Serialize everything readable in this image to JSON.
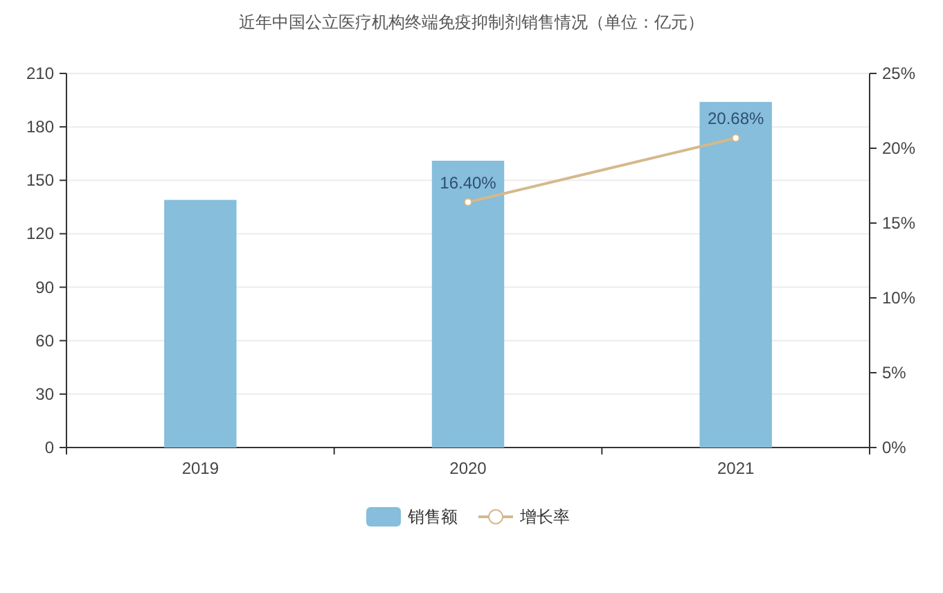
{
  "chart_data": {
    "type": "bar",
    "title": "近年中国公立医疗机构终端免疫抑制剂销售情况（单位：亿元）",
    "categories": [
      "2019",
      "2020",
      "2021"
    ],
    "series": [
      {
        "name": "销售额",
        "color": "#86bedb",
        "values": [
          139,
          161,
          194
        ]
      },
      {
        "name": "增长率",
        "type": "line",
        "axis": "y2",
        "color": "#d4b98c",
        "marker": "circle",
        "values": [
          null,
          16.4,
          20.68
        ],
        "value_labels": [
          null,
          "16.40%",
          "20.68%"
        ]
      }
    ],
    "ylim": [
      0,
      210
    ],
    "yticks": [
      0,
      30,
      60,
      90,
      120,
      150,
      180,
      210
    ],
    "y2lim": [
      0,
      25
    ],
    "y2ticks": [
      {
        "value": 0,
        "label": "0%"
      },
      {
        "value": 5,
        "label": "5%"
      },
      {
        "value": 10,
        "label": "10%"
      },
      {
        "value": 15,
        "label": "15%"
      },
      {
        "value": 20,
        "label": "20%"
      },
      {
        "value": 25,
        "label": "25%"
      }
    ],
    "grid": "y",
    "legend": "bottom"
  }
}
